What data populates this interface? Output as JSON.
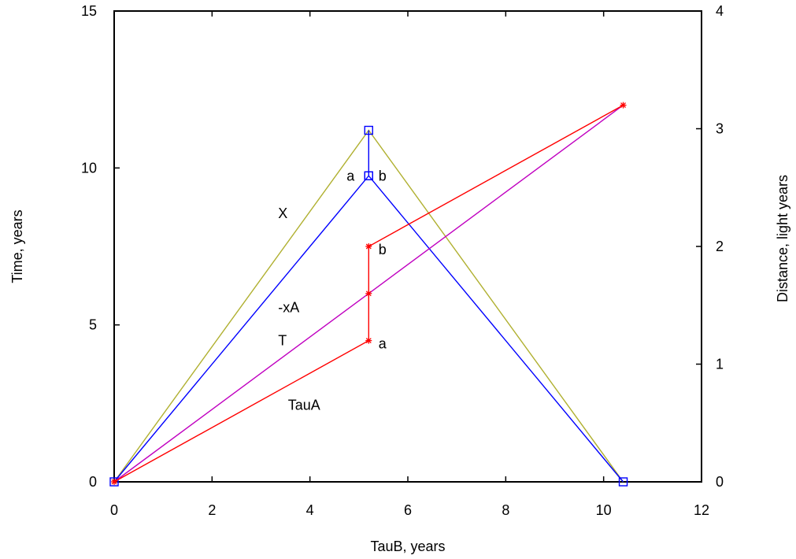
{
  "chart_data": {
    "type": "line",
    "xlabel": "TauB,  years",
    "ylabel": "Time,  years",
    "y2label": "Distance,  light years",
    "xlim": [
      0,
      12
    ],
    "ylim": [
      0,
      15
    ],
    "y2lim": [
      0,
      4
    ],
    "xticks": [
      "0",
      "2",
      "4",
      "6",
      "8",
      "10",
      "12"
    ],
    "yticks": [
      "0",
      "5",
      "10",
      "15"
    ],
    "y2ticks": [
      "0",
      "1",
      "2",
      "3",
      "4"
    ],
    "grid": false,
    "series": [
      {
        "color": "#b0b030",
        "axis": "left",
        "marker": "none",
        "points": [
          [
            0,
            0
          ],
          [
            5.2,
            11.2
          ],
          [
            10.4,
            0
          ]
        ]
      },
      {
        "color": "#0000ff",
        "axis": "left",
        "marker": "square",
        "points": [
          [
            0,
            0
          ],
          [
            5.2,
            9.75
          ],
          [
            5.2,
            11.2
          ],
          [
            5.2,
            9.75
          ],
          [
            10.4,
            0
          ]
        ]
      },
      {
        "color": "#c000c0",
        "axis": "right",
        "marker": "none",
        "points": [
          [
            0,
            0
          ],
          [
            5.2,
            1.6
          ],
          [
            10.4,
            3.2
          ]
        ]
      },
      {
        "color": "#ff0000",
        "axis": "left",
        "marker": "star",
        "points": [
          [
            0,
            0
          ],
          [
            5.2,
            4.5
          ],
          [
            5.2,
            6.0
          ],
          [
            5.2,
            7.5
          ],
          [
            10.4,
            12.0
          ]
        ]
      }
    ],
    "annotations": [
      {
        "text": "X",
        "x": 3.35,
        "y": 8.4
      },
      {
        "text": "a",
        "x": 4.75,
        "y": 9.6
      },
      {
        "text": "b",
        "x": 5.4,
        "y": 9.6
      },
      {
        "text": "b",
        "x": 5.4,
        "y": 7.25
      },
      {
        "text": "-xA",
        "x": 3.35,
        "y": 5.4
      },
      {
        "text": "T",
        "x": 3.35,
        "y": 4.35
      },
      {
        "text": "a",
        "x": 5.4,
        "y": 4.25
      },
      {
        "text": "TauA",
        "x": 3.55,
        "y": 2.3
      }
    ]
  }
}
